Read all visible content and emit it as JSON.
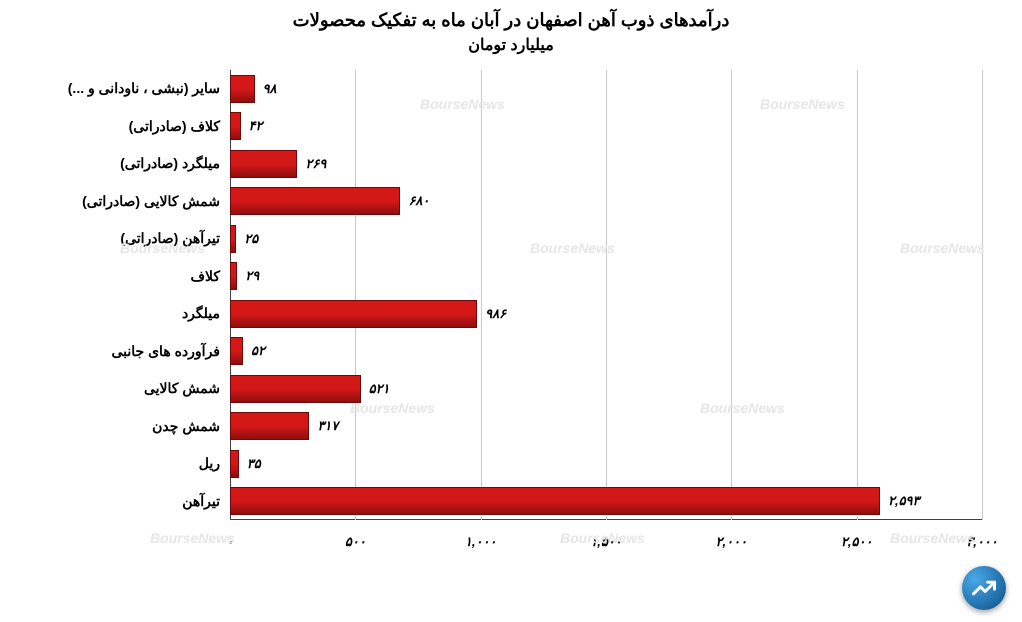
{
  "chart": {
    "type": "bar-horizontal",
    "title": "درآمدهای ذوب آهن اصفهان در آبان ماه به تفکیک محصولات",
    "subtitle": "میلیارد تومان",
    "title_fontsize": 18,
    "subtitle_fontsize": 16,
    "background_color": "#ffffff",
    "grid_color": "#c8c8c8",
    "axis_color": "#404040",
    "bar_gradient_top": "#d41818",
    "bar_gradient_bottom": "#8f0e0e",
    "bar_border": "#700808",
    "xlim": [
      0,
      3000
    ],
    "xtick_step": 500,
    "xtick_labels": [
      "۰",
      "۵۰۰",
      "۱,۰۰۰",
      "۱,۵۰۰",
      "۲,۰۰۰",
      "۲,۵۰۰",
      "۳,۰۰۰"
    ],
    "categories": [
      {
        "label": "سایر (نبشی ، ناودانی و ...)",
        "value": 98,
        "display": "۹۸"
      },
      {
        "label": "کلاف (صادراتی)",
        "value": 42,
        "display": "۴۲"
      },
      {
        "label": "میلگرد (صادراتی)",
        "value": 269,
        "display": "۲۶۹"
      },
      {
        "label": "شمش کالایی (صادراتی)",
        "value": 680,
        "display": "۶۸۰"
      },
      {
        "label": "تیرآهن (صادراتی)",
        "value": 25,
        "display": "۲۵"
      },
      {
        "label": "کلاف",
        "value": 29,
        "display": "۲۹"
      },
      {
        "label": "میلگرد",
        "value": 986,
        "display": "۹۸۶"
      },
      {
        "label": "فرآورده های جانبی",
        "value": 52,
        "display": "۵۲"
      },
      {
        "label": "شمش کالایی",
        "value": 521,
        "display": "۵۲۱"
      },
      {
        "label": "شمش چدن",
        "value": 317,
        "display": "۳۱۷"
      },
      {
        "label": "ریل",
        "value": 35,
        "display": "۳۵"
      },
      {
        "label": "تیرآهن",
        "value": 2593,
        "display": "۲,۵۹۳"
      }
    ],
    "watermark_text": "BourseNews",
    "watermark_color": "#e6e6e6"
  }
}
